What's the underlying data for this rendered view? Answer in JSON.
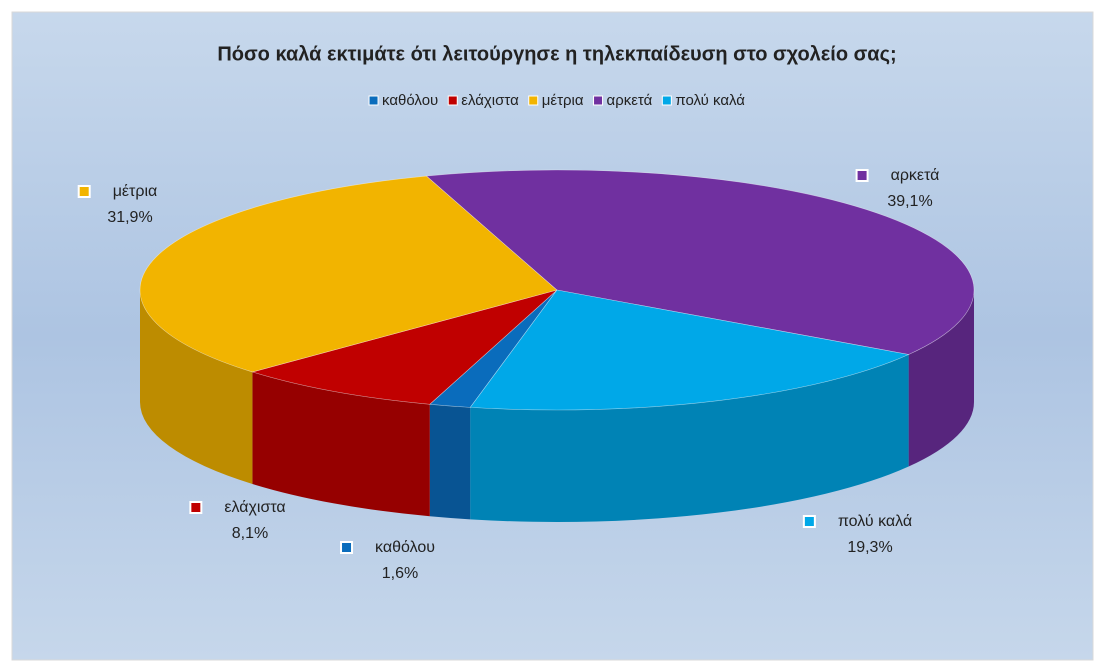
{
  "chart_data": {
    "type": "pie3d",
    "title": "Πόσο καλά εκτιμάτε ότι λειτούργησε η τηλεκπαίδευση στο σχολείο σας;",
    "categories": [
      "καθόλου",
      "ελάχιστα",
      "μέτρια",
      "αρκετά",
      "πολύ καλά"
    ],
    "values": [
      1.6,
      8.1,
      31.9,
      39.1,
      19.3
    ],
    "value_labels": [
      "1,6%",
      "8,1%",
      "31,9%",
      "39,1%",
      "19,3%"
    ],
    "colors": [
      "#0a6cbc",
      "#c00000",
      "#f2b400",
      "#7030a0",
      "#00a8e8"
    ],
    "legend": "top"
  }
}
